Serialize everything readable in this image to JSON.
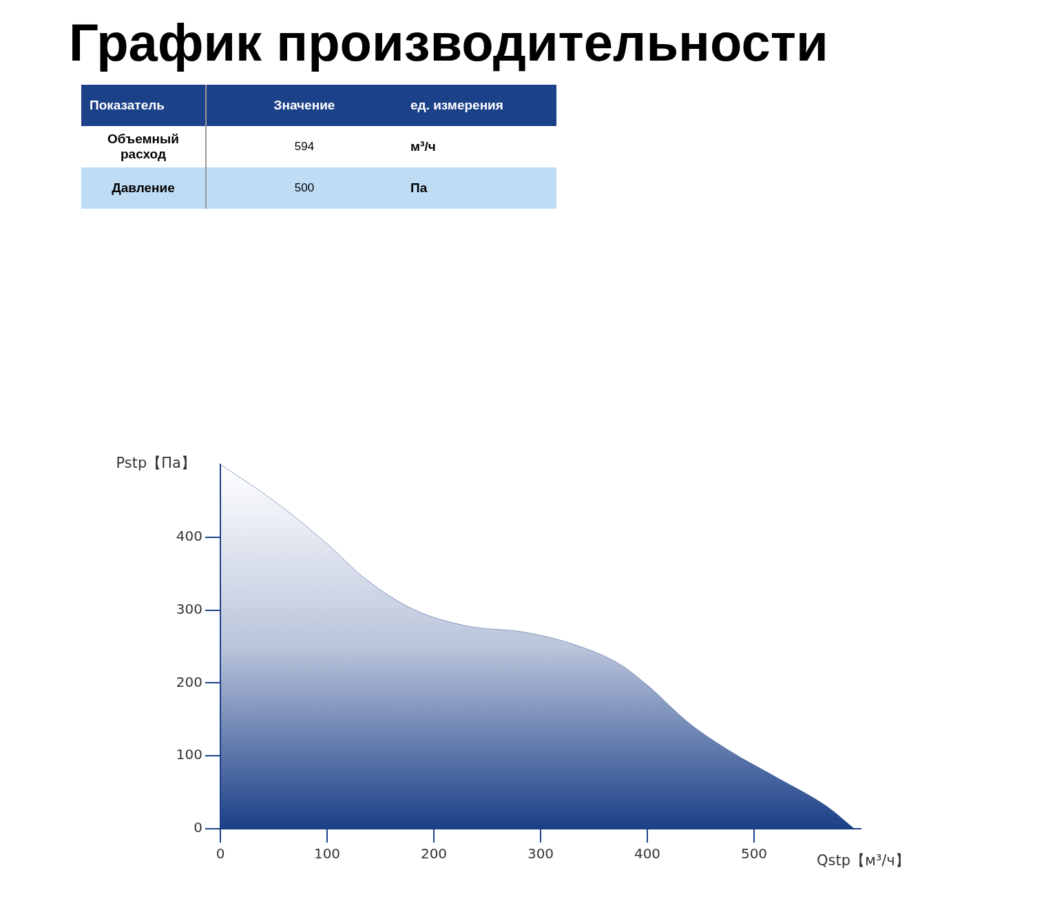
{
  "chart_data": [
    {
      "type": "other",
      "title": "График производительности",
      "annotations": [
        "Показатель",
        "Значение",
        "ед. измерения",
        "Объемный расход",
        "594",
        "м³/ч",
        "Давление",
        "500",
        "Па"
      ]
    },
    {
      "type": "area",
      "x": [
        0,
        52,
        100,
        135,
        181,
        232,
        284,
        329,
        374,
        400,
        439,
        477,
        523,
        568,
        594
      ],
      "values": [
        500,
        448,
        391,
        344,
        301,
        278,
        270,
        254,
        226,
        197,
        145,
        107,
        69,
        31,
        0
      ],
      "color": "#1b3f87",
      "xlabel": "Qstp【м³/ч】",
      "ylabel": "Pstp【Па】",
      "xlim": [
        0,
        600
      ],
      "ylim": [
        0,
        500
      ],
      "xticks": [
        0,
        100,
        200,
        300,
        400,
        500
      ],
      "yticks": [
        0,
        100,
        200,
        300,
        400
      ],
      "grid": false,
      "legend": false
    }
  ]
}
